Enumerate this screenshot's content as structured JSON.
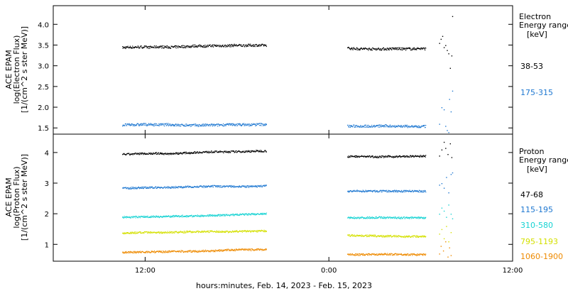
{
  "chart_data": [
    {
      "type": "scatter",
      "panel": "electron",
      "ylabel": [
        "ACE EPAM",
        "log(Electron Flux)",
        "[1/(cm^2 s ster MeV)]"
      ],
      "ylim": [
        1.35,
        4.45
      ],
      "yticks": [
        1.5,
        2.0,
        2.5,
        3.0,
        3.5,
        4.0
      ],
      "ytick_labels": [
        "1.5",
        "2.0",
        "2.5",
        "3.0",
        "3.5",
        "4.0"
      ],
      "legend_title": [
        "Electron",
        "Energy range",
        "[keV]"
      ],
      "series": [
        {
          "name": "38-53",
          "color": "#000000",
          "segments": [
            {
              "x": [
                10.5,
                19.9
              ],
              "y": 3.45
            },
            {
              "x": [
                25.2,
                30.3
              ],
              "y": 3.43
            }
          ],
          "tail": [
            [
              31.2,
              3.55
            ],
            [
              31.3,
              3.65
            ],
            [
              31.4,
              3.72
            ],
            [
              31.5,
              3.45
            ],
            [
              31.6,
              3.5
            ],
            [
              31.7,
              3.38
            ],
            [
              31.8,
              3.3
            ],
            [
              31.9,
              2.95
            ],
            [
              32.0,
              3.25
            ],
            [
              32.05,
              4.2
            ]
          ]
        },
        {
          "name": "175-315",
          "color": "#1f78d1",
          "segments": [
            {
              "x": [
                10.5,
                19.9
              ],
              "y": 1.58
            },
            {
              "x": [
                25.2,
                30.3
              ],
              "y": 1.55
            }
          ],
          "tail": [
            [
              31.2,
              1.6
            ],
            [
              31.35,
              2.0
            ],
            [
              31.5,
              1.95
            ],
            [
              31.6,
              1.55
            ],
            [
              31.7,
              1.45
            ],
            [
              31.8,
              1.4
            ],
            [
              31.85,
              2.2
            ],
            [
              31.95,
              1.9
            ],
            [
              32.05,
              2.4
            ]
          ]
        }
      ]
    },
    {
      "type": "scatter",
      "panel": "proton",
      "ylabel": [
        "ACE EPAM",
        "log(Proton Flux)",
        "[1/(cm^2 s ster MeV)]"
      ],
      "ylim": [
        0.45,
        4.6
      ],
      "yticks": [
        1,
        2,
        3,
        4
      ],
      "ytick_labels": [
        "1",
        "2",
        "3",
        "4"
      ],
      "legend_title": [
        "Proton",
        "Energy range",
        "[keV]"
      ],
      "series": [
        {
          "name": "47-68",
          "color": "#000000",
          "segments": [
            {
              "x": [
                10.5,
                19.9
              ],
              "y": 3.95
            },
            {
              "x": [
                25.2,
                30.3
              ],
              "y": 3.88
            }
          ],
          "tail": [
            [
              31.2,
              3.9
            ],
            [
              31.35,
              4.1
            ],
            [
              31.5,
              4.35
            ],
            [
              31.6,
              4.15
            ],
            [
              31.75,
              3.95
            ],
            [
              31.9,
              4.3
            ],
            [
              32.0,
              3.85
            ]
          ]
        },
        {
          "name": "115-195",
          "color": "#1f78d1",
          "segments": [
            {
              "x": [
                10.5,
                19.9
              ],
              "y": 2.85
            },
            {
              "x": [
                25.2,
                30.3
              ],
              "y": 2.75
            }
          ],
          "tail": [
            [
              31.2,
              2.95
            ],
            [
              31.35,
              3.0
            ],
            [
              31.5,
              2.85
            ],
            [
              31.65,
              3.2
            ],
            [
              31.8,
              2.7
            ],
            [
              31.95,
              3.3
            ],
            [
              32.05,
              3.35
            ]
          ]
        },
        {
          "name": "310-580",
          "color": "#17d3d3",
          "segments": [
            {
              "x": [
                10.5,
                19.9
              ],
              "y": 1.9
            },
            {
              "x": [
                25.2,
                30.3
              ],
              "y": 1.88
            }
          ],
          "tail": [
            [
              31.2,
              2.0
            ],
            [
              31.35,
              2.2
            ],
            [
              31.5,
              2.1
            ],
            [
              31.65,
              1.9
            ],
            [
              31.8,
              2.3
            ],
            [
              31.95,
              2.0
            ],
            [
              32.05,
              1.85
            ]
          ]
        },
        {
          "name": "795-1193",
          "color": "#d4e000",
          "segments": [
            {
              "x": [
                10.5,
                19.9
              ],
              "y": 1.38
            },
            {
              "x": [
                25.2,
                30.3
              ],
              "y": 1.3
            }
          ],
          "tail": [
            [
              31.2,
              1.35
            ],
            [
              31.35,
              1.5
            ],
            [
              31.5,
              1.2
            ],
            [
              31.65,
              1.6
            ],
            [
              31.8,
              1.1
            ],
            [
              31.95,
              1.4
            ]
          ]
        },
        {
          "name": "1060-1900",
          "color": "#ee8a00",
          "segments": [
            {
              "x": [
                10.5,
                19.9
              ],
              "y": 0.75
            },
            {
              "x": [
                25.2,
                30.3
              ],
              "y": 0.68
            }
          ],
          "tail": [
            [
              31.2,
              0.7
            ],
            [
              31.3,
              0.95
            ],
            [
              31.45,
              0.8
            ],
            [
              31.6,
              1.1
            ],
            [
              31.75,
              0.6
            ],
            [
              31.85,
              0.9
            ],
            [
              31.95,
              0.65
            ]
          ]
        }
      ]
    }
  ],
  "xaxis": {
    "xlim": [
      6.0,
      36.0
    ],
    "xticks": [
      12,
      24,
      36
    ],
    "xtick_labels": [
      "12:00",
      "0:00",
      "12:00"
    ],
    "xlabel": "hours:minutes, Feb. 14, 2023 - Feb. 15, 2023"
  }
}
